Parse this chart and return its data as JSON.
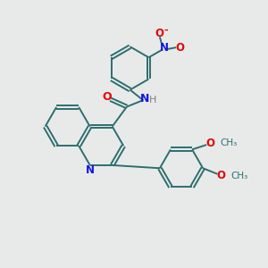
{
  "bg_color": "#e8eaea",
  "bond_color": "#2d6e6e",
  "N_color": "#1414e6",
  "O_color": "#e60000",
  "lw": 1.4,
  "figsize": [
    3.0,
    3.0
  ],
  "dpi": 100,
  "xlim": [
    0,
    10
  ],
  "ylim": [
    0,
    10
  ],
  "no2_N_label": "N",
  "no2_O1_label": "O",
  "no2_O2_label": "O",
  "amide_O_label": "O",
  "nh_N_label": "N",
  "nh_H_label": "H",
  "qn_N_label": "N",
  "ome1_label": "O",
  "ome2_label": "O",
  "ome1_me": "CH₃",
  "ome2_me": "CH₃"
}
